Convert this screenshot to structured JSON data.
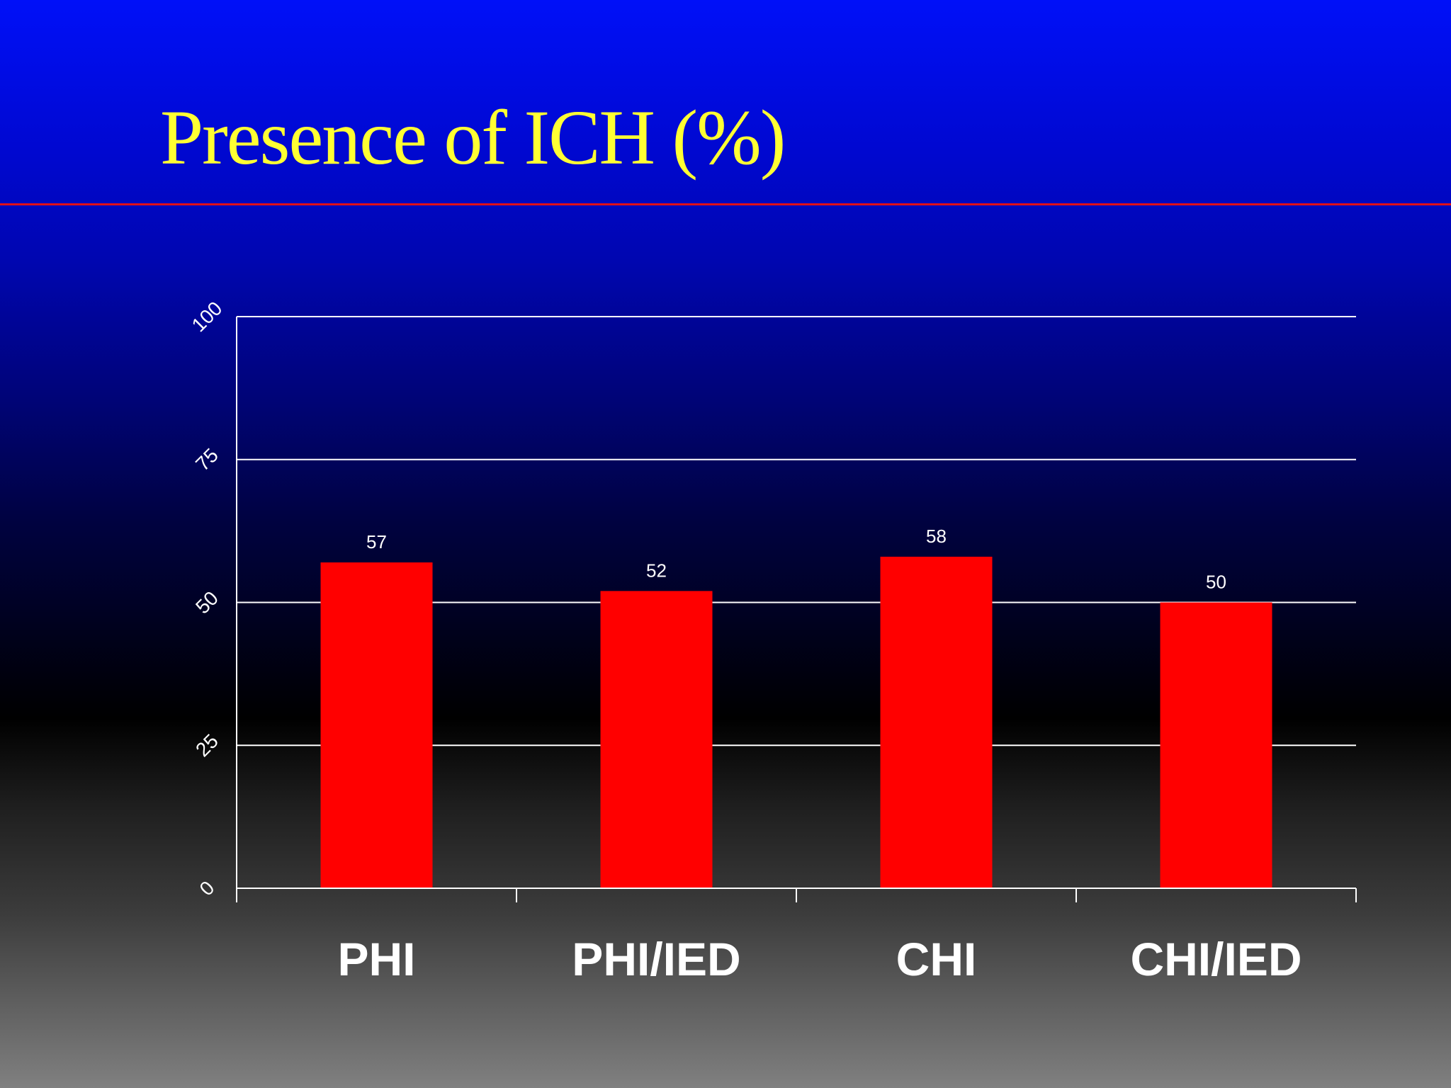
{
  "slide": {
    "title": "Presence of ICH (%)"
  },
  "colors": {
    "bar": "#ff0000",
    "title": "#ffff33",
    "rule": "#e0101a",
    "axis": "#ffffff"
  },
  "chart_data": {
    "type": "bar",
    "title": "Presence of ICH (%)",
    "categories": [
      "PHI",
      "PHI/IED",
      "CHI",
      "CHI/IED"
    ],
    "values": [
      57,
      52,
      58,
      50
    ],
    "data_labels": [
      "57",
      "52",
      "58",
      "50"
    ],
    "ylim": [
      0,
      100
    ],
    "yticks": [
      0,
      25,
      50,
      75,
      100
    ],
    "ytick_labels": [
      "0",
      "25",
      "50",
      "75",
      "100"
    ],
    "xlabel": "",
    "ylabel": "",
    "grid": true,
    "legend": "none"
  }
}
